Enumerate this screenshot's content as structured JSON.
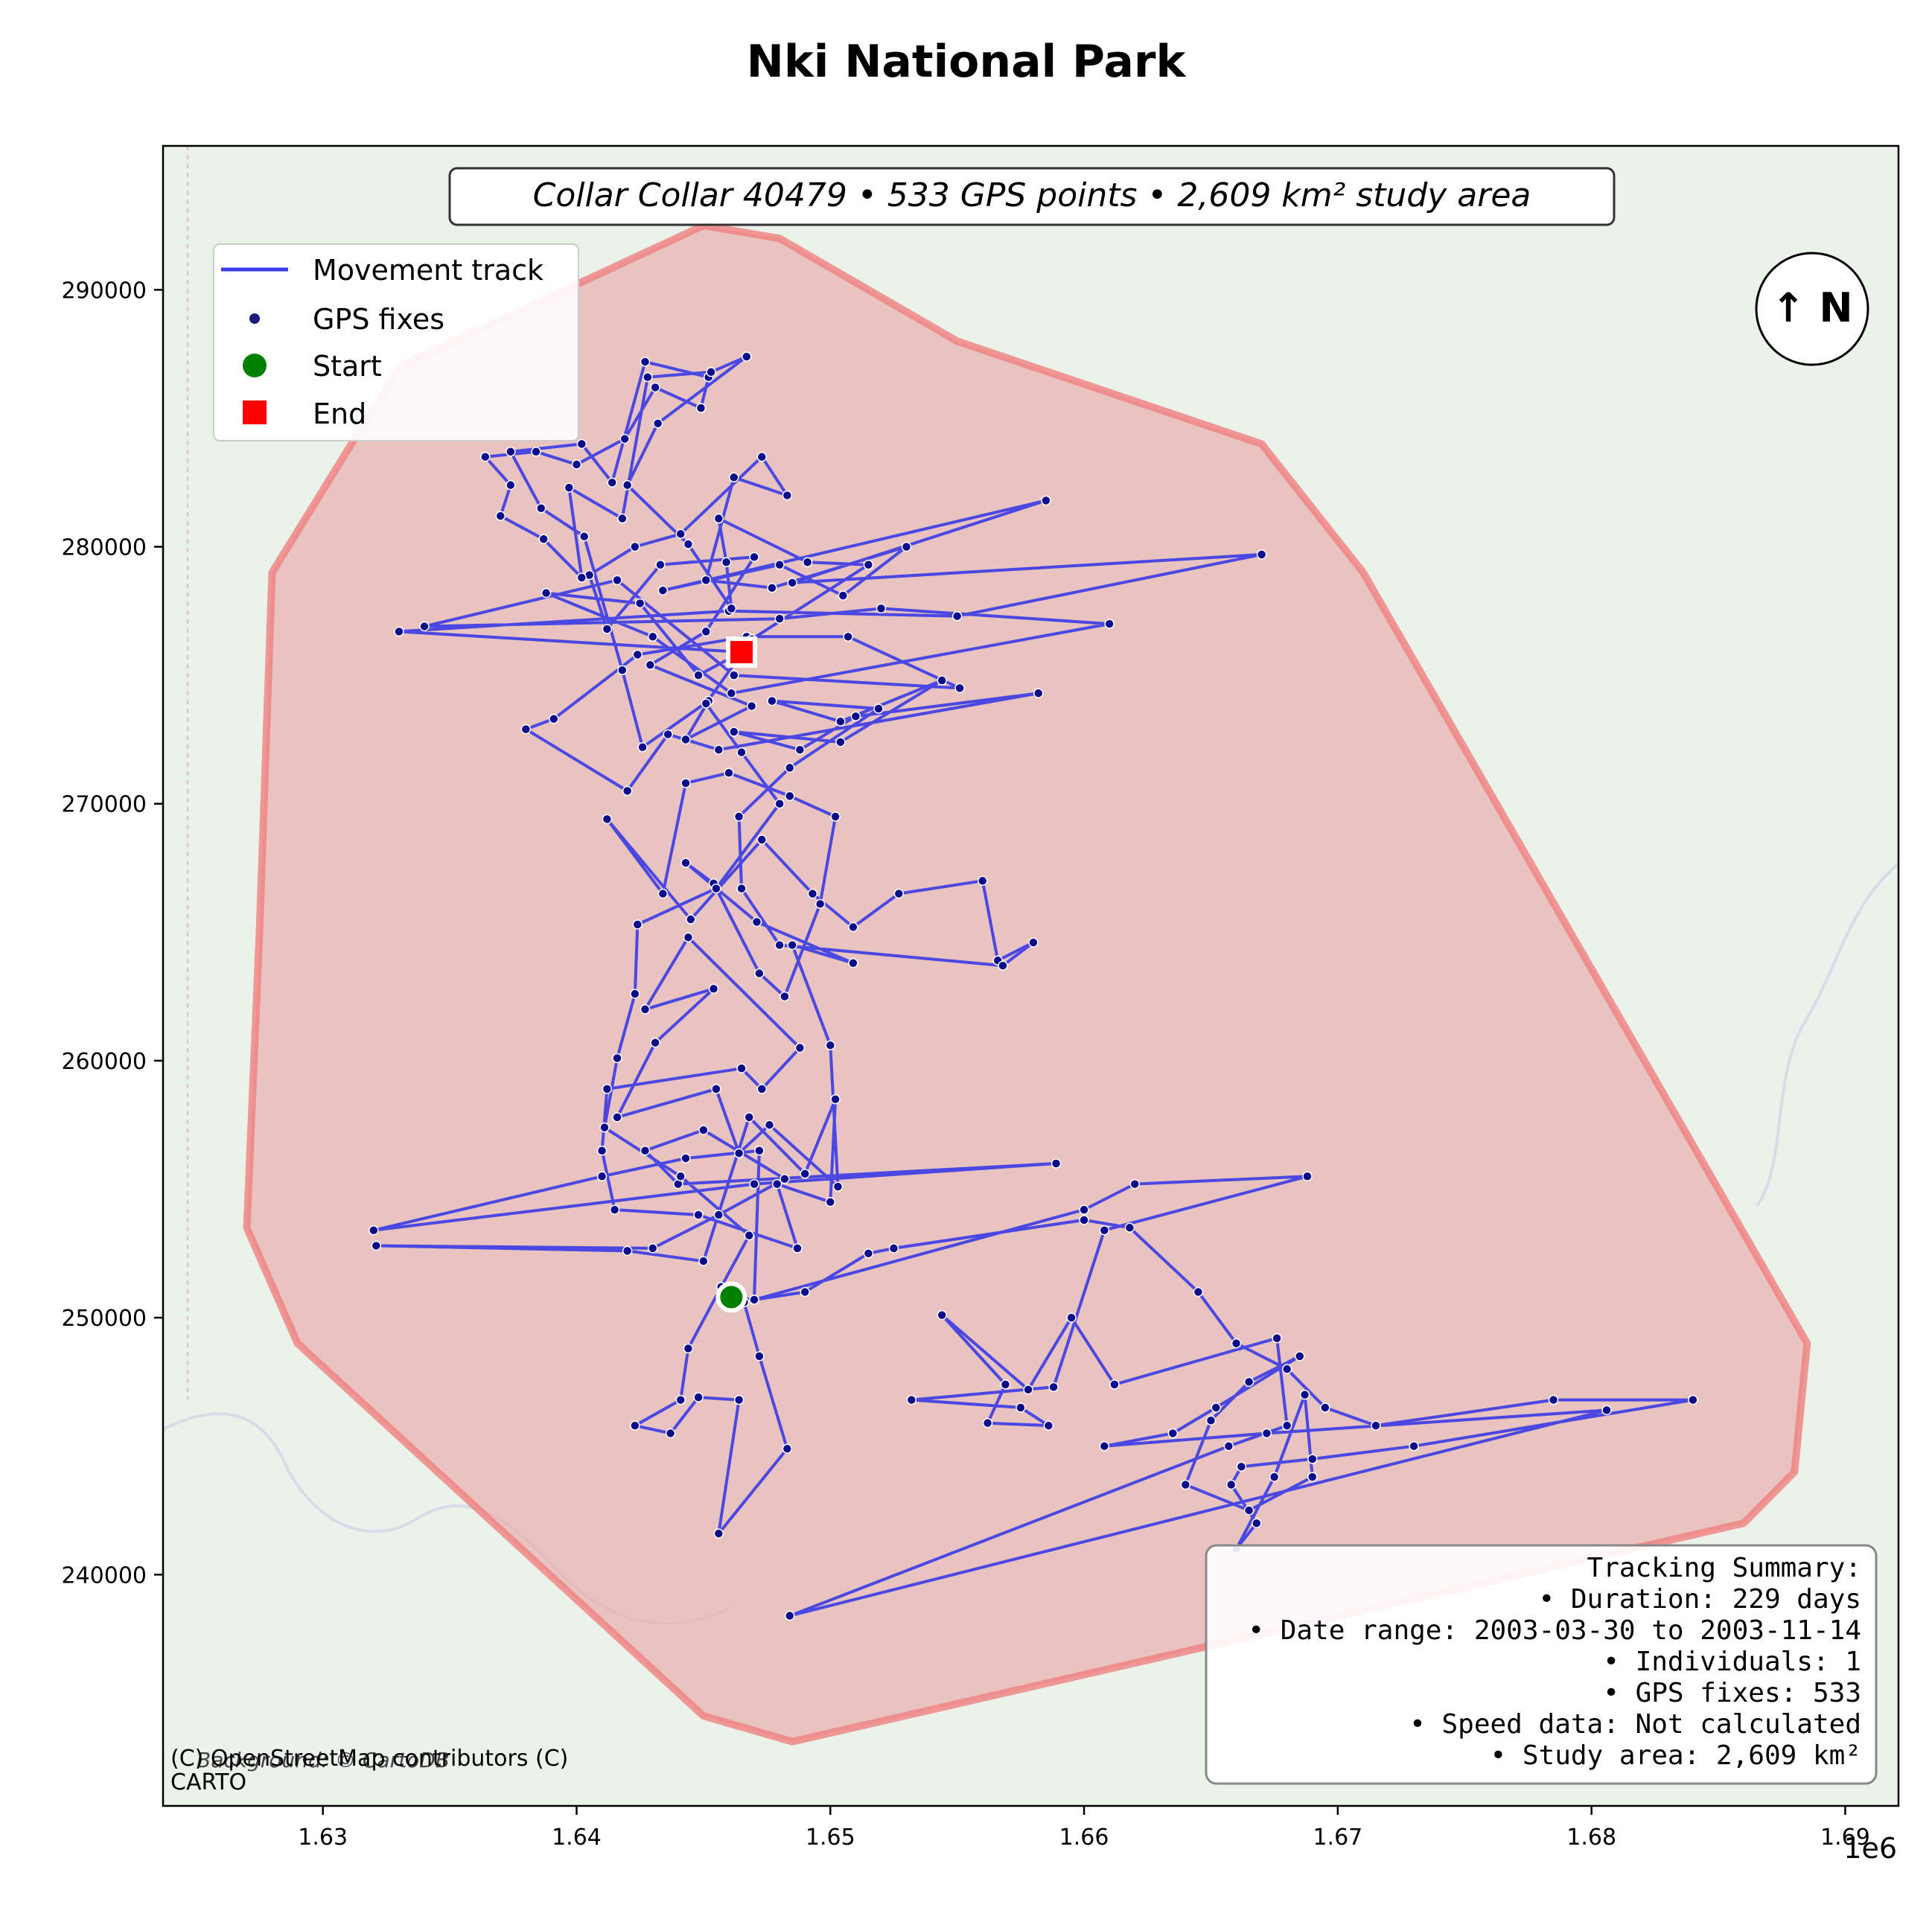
{
  "title": "Nki National Park",
  "subtitle": "Collar Collar 40479 • 533 GPS points • 2,609 km² study area",
  "attribution": {
    "line1": "(C) OpenStreetMap contributors (C)",
    "line2": "CARTO",
    "background": "Background: © CartoDB"
  },
  "north_arrow": "↑ N",
  "legend": [
    {
      "label": "Movement track",
      "symbol": "line",
      "color": "#3333ee"
    },
    {
      "label": "GPS fixes",
      "symbol": "dot",
      "color": "#1a1a80"
    },
    {
      "label": "Start",
      "symbol": "circle",
      "color": "#008000"
    },
    {
      "label": "End",
      "symbol": "square",
      "color": "#ff0000"
    }
  ],
  "summary": {
    "heading": "Tracking Summary:",
    "lines": [
      "• Duration: 229 days",
      "• Date range: 2003-03-30 to 2003-11-14",
      "• Individuals: 1",
      "• GPS fixes: 533",
      "• Speed data: Not calculated",
      "• Study area: 2,609 km²"
    ]
  },
  "axes": {
    "x_ticks": [
      {
        "value": 1630000,
        "label": "1.63"
      },
      {
        "value": 1640000,
        "label": "1.64"
      },
      {
        "value": 1650000,
        "label": "1.65"
      },
      {
        "value": 1660000,
        "label": "1.66"
      },
      {
        "value": 1670000,
        "label": "1.67"
      },
      {
        "value": 1680000,
        "label": "1.68"
      },
      {
        "value": 1690000,
        "label": "1.69"
      }
    ],
    "x_offset_label": "1e6",
    "y_ticks": [
      {
        "value": 240000,
        "label": "240000"
      },
      {
        "value": 250000,
        "label": "250000"
      },
      {
        "value": 260000,
        "label": "260000"
      },
      {
        "value": 270000,
        "label": "270000"
      },
      {
        "value": 280000,
        "label": "280000"
      },
      {
        "value": 290000,
        "label": "290000"
      }
    ],
    "xlim": [
      1623700,
      1692100
    ],
    "ylim": [
      231000,
      295600
    ]
  },
  "colors": {
    "hull_fill": "#e7b3b0",
    "hull_stroke": "#f08080",
    "track": "#3a3ae6",
    "fix": "#0b0b8c",
    "start": "#008000",
    "end": "#ff0000",
    "basemap": "#eaf2ea"
  },
  "chart_data": {
    "type": "scatter",
    "title": "Nki National Park",
    "xlim": [
      1623700,
      1692100
    ],
    "ylim": [
      231000,
      295600
    ],
    "start": [
      1646100,
      250800
    ],
    "end": [
      1646500,
      275900
    ],
    "hull": [
      [
        1645000,
        292500
      ],
      [
        1648000,
        292000
      ],
      [
        1655000,
        288000
      ],
      [
        1667000,
        284000
      ],
      [
        1671000,
        279000
      ],
      [
        1688500,
        249000
      ],
      [
        1688000,
        244000
      ],
      [
        1686000,
        242000
      ],
      [
        1648500,
        233500
      ],
      [
        1645000,
        234500
      ],
      [
        1629000,
        249000
      ],
      [
        1627000,
        253500
      ],
      [
        1627500,
        265000
      ],
      [
        1628000,
        279000
      ],
      [
        1633000,
        287000
      ]
    ],
    "track": [
      [
        1646100,
        250800
      ],
      [
        1647000,
        250700
      ],
      [
        1649000,
        251000
      ],
      [
        1651500,
        252500
      ],
      [
        1652500,
        252700
      ],
      [
        1660000,
        253800
      ],
      [
        1661800,
        253500
      ],
      [
        1664500,
        251000
      ],
      [
        1666000,
        249000
      ],
      [
        1668000,
        248000
      ],
      [
        1669500,
        246500
      ],
      [
        1671500,
        245800
      ],
      [
        1678500,
        246800
      ],
      [
        1684000,
        246800
      ],
      [
        1673000,
        245000
      ],
      [
        1669000,
        244500
      ],
      [
        1666200,
        244200
      ],
      [
        1665800,
        243500
      ],
      [
        1666800,
        242000
      ],
      [
        1666000,
        241000
      ],
      [
        1667500,
        243800
      ],
      [
        1668700,
        247000
      ],
      [
        1669000,
        243800
      ],
      [
        1666500,
        242500
      ],
      [
        1664000,
        243500
      ],
      [
        1665000,
        246000
      ],
      [
        1666500,
        247500
      ],
      [
        1668500,
        248500
      ],
      [
        1665200,
        246500
      ],
      [
        1663500,
        245500
      ],
      [
        1660800,
        245000
      ],
      [
        1667200,
        245500
      ],
      [
        1680600,
        246400
      ],
      [
        1648400,
        238400
      ],
      [
        1665700,
        245000
      ],
      [
        1668000,
        245800
      ],
      [
        1667600,
        249200
      ],
      [
        1661200,
        247400
      ],
      [
        1659500,
        250000
      ],
      [
        1657800,
        247200
      ],
      [
        1654400,
        250100
      ],
      [
        1656900,
        247400
      ],
      [
        1656200,
        245900
      ],
      [
        1658600,
        245800
      ],
      [
        1657500,
        246500
      ],
      [
        1653200,
        246800
      ],
      [
        1658800,
        247300
      ],
      [
        1660800,
        253400
      ],
      [
        1668800,
        255500
      ],
      [
        1662000,
        255200
      ],
      [
        1660000,
        254200
      ],
      [
        1647000,
        250700
      ],
      [
        1647200,
        256500
      ],
      [
        1644300,
        256200
      ],
      [
        1641000,
        255500
      ],
      [
        1632000,
        253400
      ],
      [
        1647000,
        255200
      ],
      [
        1658900,
        256000
      ],
      [
        1644000,
        255200
      ],
      [
        1642700,
        256500
      ],
      [
        1645000,
        257300
      ],
      [
        1648200,
        255400
      ],
      [
        1645600,
        254000
      ],
      [
        1643000,
        252700
      ],
      [
        1632100,
        252800
      ],
      [
        1642000,
        252600
      ],
      [
        1645000,
        252200
      ],
      [
        1646800,
        257800
      ],
      [
        1649000,
        255600
      ],
      [
        1650200,
        258500
      ],
      [
        1650000,
        254500
      ],
      [
        1647900,
        255200
      ],
      [
        1648700,
        252700
      ],
      [
        1644800,
        254000
      ],
      [
        1641500,
        254200
      ],
      [
        1641000,
        256500
      ],
      [
        1641200,
        258900
      ],
      [
        1646500,
        259700
      ],
      [
        1647300,
        258900
      ],
      [
        1648800,
        260500
      ],
      [
        1644400,
        264800
      ],
      [
        1642700,
        262000
      ],
      [
        1645400,
        262800
      ],
      [
        1643100,
        260700
      ],
      [
        1641600,
        257800
      ],
      [
        1645500,
        258900
      ],
      [
        1646400,
        256400
      ],
      [
        1647600,
        257500
      ],
      [
        1650300,
        255100
      ],
      [
        1650000,
        260600
      ],
      [
        1648500,
        264500
      ],
      [
        1650900,
        263800
      ],
      [
        1647100,
        265400
      ],
      [
        1644300,
        267700
      ],
      [
        1645400,
        266900
      ],
      [
        1647200,
        263400
      ],
      [
        1648200,
        262500
      ],
      [
        1649600,
        266100
      ],
      [
        1650200,
        269500
      ],
      [
        1648400,
        270300
      ],
      [
        1646000,
        271200
      ],
      [
        1644300,
        270800
      ],
      [
        1643400,
        266500
      ],
      [
        1641200,
        269400
      ],
      [
        1644500,
        265500
      ],
      [
        1647300,
        268600
      ],
      [
        1649300,
        266500
      ],
      [
        1650900,
        265200
      ],
      [
        1652700,
        266500
      ],
      [
        1656000,
        267000
      ],
      [
        1656600,
        263900
      ],
      [
        1658000,
        264600
      ],
      [
        1656800,
        263700
      ],
      [
        1648000,
        264500
      ],
      [
        1646500,
        266700
      ],
      [
        1646400,
        269500
      ],
      [
        1648400,
        271400
      ],
      [
        1651900,
        273700
      ],
      [
        1647700,
        274000
      ],
      [
        1650400,
        273200
      ],
      [
        1654400,
        274800
      ],
      [
        1650400,
        272400
      ],
      [
        1646200,
        272800
      ],
      [
        1648800,
        272100
      ],
      [
        1651000,
        273400
      ],
      [
        1658200,
        274300
      ],
      [
        1645600,
        272100
      ],
      [
        1643600,
        272700
      ],
      [
        1642000,
        270500
      ],
      [
        1638000,
        272900
      ],
      [
        1639100,
        273300
      ],
      [
        1642400,
        275800
      ],
      [
        1646700,
        276500
      ],
      [
        1650700,
        276500
      ],
      [
        1655100,
        274500
      ],
      [
        1646200,
        275000
      ],
      [
        1641600,
        278700
      ],
      [
        1634000,
        276900
      ],
      [
        1648000,
        277200
      ],
      [
        1652000,
        277600
      ],
      [
        1661000,
        277000
      ],
      [
        1646100,
        274300
      ],
      [
        1643000,
        276500
      ],
      [
        1638800,
        278200
      ],
      [
        1642500,
        277800
      ],
      [
        1644800,
        275000
      ],
      [
        1646500,
        275900
      ],
      [
        1633000,
        276700
      ],
      [
        1646000,
        277500
      ],
      [
        1655000,
        277300
      ],
      [
        1667000,
        279700
      ],
      [
        1648500,
        278600
      ],
      [
        1658500,
        281800
      ],
      [
        1643400,
        278300
      ],
      [
        1648000,
        279300
      ],
      [
        1650500,
        278100
      ],
      [
        1653000,
        280000
      ],
      [
        1647700,
        278400
      ],
      [
        1645100,
        278700
      ],
      [
        1646200,
        282700
      ],
      [
        1648300,
        282000
      ],
      [
        1647300,
        283500
      ],
      [
        1644100,
        280500
      ],
      [
        1642300,
        280000
      ],
      [
        1640500,
        278900
      ],
      [
        1641200,
        276800
      ],
      [
        1643300,
        279300
      ],
      [
        1647000,
        279600
      ],
      [
        1645100,
        276700
      ],
      [
        1642900,
        275400
      ],
      [
        1646900,
        273800
      ],
      [
        1644300,
        272500
      ],
      [
        1645200,
        274000
      ],
      [
        1642600,
        272200
      ],
      [
        1641800,
        275200
      ],
      [
        1640300,
        280400
      ],
      [
        1638600,
        281500
      ],
      [
        1637400,
        283700
      ],
      [
        1640200,
        284000
      ],
      [
        1641400,
        282500
      ],
      [
        1642700,
        287200
      ],
      [
        1645200,
        286600
      ],
      [
        1644900,
        285400
      ],
      [
        1643100,
        286200
      ],
      [
        1641900,
        284200
      ],
      [
        1640000,
        283200
      ],
      [
        1638400,
        283700
      ],
      [
        1636400,
        283500
      ],
      [
        1637400,
        282400
      ],
      [
        1637000,
        281200
      ],
      [
        1638700,
        280300
      ],
      [
        1640200,
        278800
      ],
      [
        1639700,
        282300
      ],
      [
        1641800,
        281100
      ],
      [
        1642800,
        286600
      ],
      [
        1645300,
        286800
      ],
      [
        1646700,
        287400
      ],
      [
        1643200,
        284800
      ],
      [
        1642000,
        282400
      ],
      [
        1644400,
        280100
      ],
      [
        1646100,
        277600
      ],
      [
        1645900,
        279400
      ],
      [
        1645600,
        281100
      ],
      [
        1649100,
        279400
      ],
      [
        1651500,
        279300
      ],
      [
        1646900,
        276400
      ],
      [
        1645100,
        273900
      ],
      [
        1646500,
        272000
      ],
      [
        1648000,
        270000
      ],
      [
        1645500,
        266700
      ],
      [
        1642400,
        265300
      ],
      [
        1642300,
        262600
      ],
      [
        1641600,
        260100
      ],
      [
        1641100,
        257400
      ],
      [
        1644100,
        255500
      ],
      [
        1646800,
        253200
      ],
      [
        1645700,
        251200
      ],
      [
        1644400,
        248800
      ],
      [
        1644100,
        246800
      ],
      [
        1642300,
        245800
      ],
      [
        1643700,
        245500
      ],
      [
        1644800,
        246900
      ],
      [
        1646400,
        246800
      ],
      [
        1645600,
        241600
      ],
      [
        1648300,
        244900
      ],
      [
        1647200,
        248500
      ],
      [
        1646600,
        250600
      ],
      [
        1646100,
        250800
      ]
    ],
    "fixes_note": "GPS fixes drawn at every track vertex"
  }
}
